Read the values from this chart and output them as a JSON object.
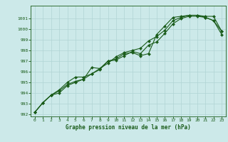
{
  "xlabel": "Graphe pression niveau de la mer (hPa)",
  "background_color": "#cce9e9",
  "grid_color": "#b0d4d4",
  "line_color": "#1a5c1a",
  "marker_color": "#1a5c1a",
  "x_values": [
    0,
    1,
    2,
    3,
    4,
    5,
    6,
    7,
    8,
    9,
    10,
    11,
    12,
    13,
    14,
    15,
    16,
    17,
    18,
    19,
    20,
    21,
    22,
    23
  ],
  "series1": [
    992.2,
    993.1,
    993.8,
    994.3,
    995.0,
    995.5,
    995.5,
    995.8,
    996.2,
    997.0,
    997.2,
    997.7,
    997.8,
    997.5,
    997.7,
    999.5,
    1000.3,
    1001.1,
    1001.2,
    1001.3,
    1001.3,
    1001.2,
    1001.2,
    999.8
  ],
  "series2": [
    992.2,
    993.1,
    993.8,
    994.2,
    994.8,
    995.1,
    995.3,
    995.8,
    996.3,
    996.8,
    997.4,
    997.8,
    998.0,
    998.2,
    998.9,
    999.3,
    999.9,
    1000.8,
    1001.1,
    1001.3,
    1001.3,
    1001.1,
    1000.8,
    999.8
  ],
  "series3": [
    992.2,
    993.1,
    993.8,
    994.0,
    994.7,
    995.0,
    995.3,
    996.4,
    996.3,
    997.0,
    997.1,
    997.5,
    997.9,
    997.7,
    998.5,
    998.8,
    999.6,
    1000.5,
    1001.0,
    1001.2,
    1001.2,
    1001.1,
    1000.8,
    999.5
  ],
  "ylim": [
    992,
    1002
  ],
  "xlim": [
    -0.5,
    23.5
  ],
  "yticks": [
    992,
    993,
    994,
    995,
    996,
    997,
    998,
    999,
    1000,
    1001
  ],
  "xticks": [
    0,
    1,
    2,
    3,
    4,
    5,
    6,
    7,
    8,
    9,
    10,
    11,
    12,
    13,
    14,
    15,
    16,
    17,
    18,
    19,
    20,
    21,
    22,
    23
  ]
}
